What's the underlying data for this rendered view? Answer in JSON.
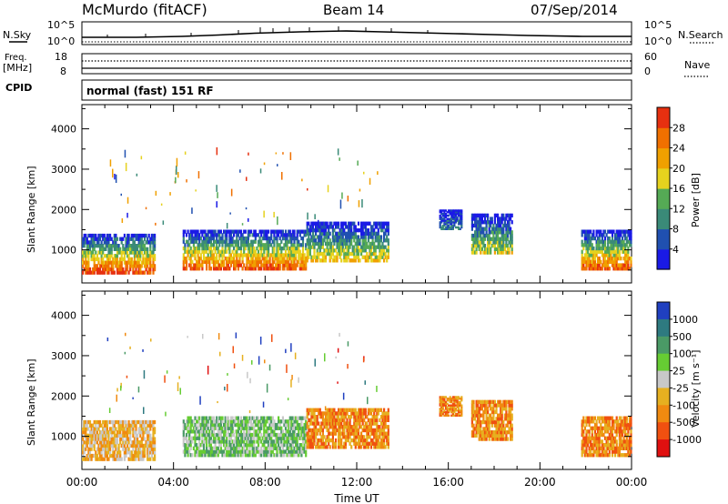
{
  "header": {
    "station": "McMurdo (fitACF)",
    "beam": "Beam 14",
    "date": "07/Sep/2014"
  },
  "labels": {
    "nsky": "N.Sky",
    "nsearch": "N.Search",
    "freq_line1": "Freq.",
    "freq_line2": "[MHz]",
    "nave": "Nave",
    "cpid": "CPID",
    "cpid_value": "normal (fast) 151 RF",
    "y_axis": "Slant Range [km]",
    "x_axis": "Time UT",
    "power_label": "Power [dB]",
    "velocity_label": "Velocity [m s⁻¹]"
  },
  "noise_axis": {
    "left_top": "10^5",
    "left_bot": "10^0",
    "right_top": "10^5",
    "right_bot": "10^0"
  },
  "freq_axis": {
    "left_top": "18",
    "left_bot": "8",
    "right_top": "60",
    "right_bot": "0"
  },
  "chart_data": [
    {
      "type": "heatmap",
      "name": "power",
      "xlabel": "Time UT",
      "ylabel": "Slant Range [km]",
      "x_ticks": [
        "00:00",
        "04:00",
        "08:00",
        "12:00",
        "16:00",
        "20:00",
        "00:00"
      ],
      "xlim_hours": [
        0,
        24
      ],
      "y_ticks": [
        1000,
        2000,
        3000,
        4000
      ],
      "ylim_km": [
        180,
        4600
      ],
      "colorbar": {
        "label": "Power [dB]",
        "ticks": [
          4,
          8,
          12,
          16,
          20,
          24,
          28
        ],
        "range": [
          0,
          32
        ]
      },
      "regions": [
        {
          "t0": 0.0,
          "t1": 3.2,
          "r0": 400,
          "r1": 1400,
          "peak_db": 30
        },
        {
          "t0": 4.4,
          "t1": 9.8,
          "r0": 500,
          "r1": 1500,
          "peak_db": 28
        },
        {
          "t0": 9.8,
          "t1": 13.4,
          "r0": 700,
          "r1": 1700,
          "peak_db": 20
        },
        {
          "t0": 15.6,
          "t1": 16.6,
          "r0": 1500,
          "r1": 2000,
          "peak_db": 10
        },
        {
          "t0": 17.0,
          "t1": 18.8,
          "r0": 900,
          "r1": 1900,
          "peak_db": 18
        },
        {
          "t0": 21.8,
          "t1": 24.0,
          "r0": 500,
          "r1": 1500,
          "peak_db": 28
        }
      ]
    },
    {
      "type": "heatmap",
      "name": "velocity",
      "xlabel": "Time UT",
      "ylabel": "Slant Range [km]",
      "x_ticks": [
        "00:00",
        "04:00",
        "08:00",
        "12:00",
        "16:00",
        "20:00",
        "00:00"
      ],
      "xlim_hours": [
        0,
        24
      ],
      "y_ticks": [
        1000,
        2000,
        3000,
        4000
      ],
      "ylim_km": [
        180,
        4600
      ],
      "colorbar": {
        "label": "Velocity [m s⁻¹]",
        "tick_labels": [
          "1000",
          "500",
          "100",
          "25",
          "-25",
          "-100",
          "-500",
          "-1000"
        ]
      },
      "regions": [
        {
          "t0": 0.0,
          "t1": 3.2,
          "r0": 400,
          "r1": 1400,
          "dominant": "-25"
        },
        {
          "t0": 4.4,
          "t1": 9.8,
          "r0": 500,
          "r1": 1500,
          "dominant": "100"
        },
        {
          "t0": 9.8,
          "t1": 13.4,
          "r0": 700,
          "r1": 1700,
          "dominant": "-100"
        },
        {
          "t0": 15.6,
          "t1": 16.6,
          "r0": 1500,
          "r1": 2000,
          "dominant": "-100"
        },
        {
          "t0": 17.0,
          "t1": 18.8,
          "r0": 900,
          "r1": 1900,
          "dominant": "-100"
        },
        {
          "t0": 21.8,
          "t1": 24.0,
          "r0": 500,
          "r1": 1500,
          "dominant": "-100"
        }
      ]
    }
  ],
  "colors": {
    "power_scale": [
      "#1a1ae6",
      "#2050b0",
      "#3a8a78",
      "#55aa55",
      "#e6d21e",
      "#f0a000",
      "#f07000",
      "#e63010"
    ],
    "velocity_scale": [
      "#2040c0",
      "#2e7a80",
      "#4a9a66",
      "#66cc33",
      "#c8c8c8",
      "#e6b020",
      "#f08a10",
      "#f05010",
      "#e01010"
    ]
  }
}
